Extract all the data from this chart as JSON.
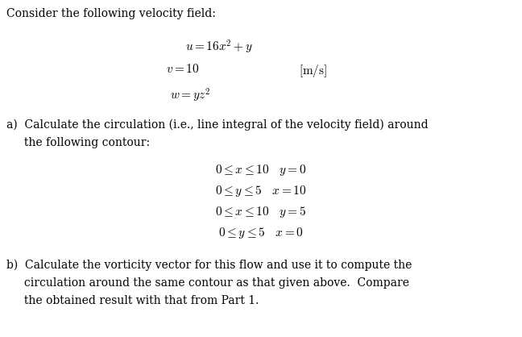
{
  "background_color": "#ffffff",
  "fig_width": 6.48,
  "fig_height": 4.18,
  "dpi": 100,
  "text_color": "#000000",
  "intro_text": "Consider the following velocity field:",
  "eq1": "$u = 16x^2 + y$",
  "eq2": "$v = 10$",
  "units": "$[\\mathrm{m/s}]$",
  "eq3": "$w = yz^2$",
  "part_a_line1": "a)  Calculate the circulation (i.e., line integral of the velocity field) around",
  "part_a_line2": "     the following contour:",
  "contour1": "$0 \\leq x \\leq 10 \\quad y = 0$",
  "contour2": "$0 \\leq y \\leq 5 \\quad x = 10$",
  "contour3": "$0 \\leq x \\leq 10 \\quad y = 5$",
  "contour4": "$0 \\leq y \\leq 5 \\quad x = 0$",
  "part_b_line1": "b)  Calculate the vorticity vector for this flow and use it to compute the",
  "part_b_line2": "     circulation around the same contour as that given above.  Compare",
  "part_b_line3": "     the obtained result with that from Part 1.",
  "font_size_body": 10.0,
  "font_size_eq": 11.0,
  "font_family": "serif"
}
